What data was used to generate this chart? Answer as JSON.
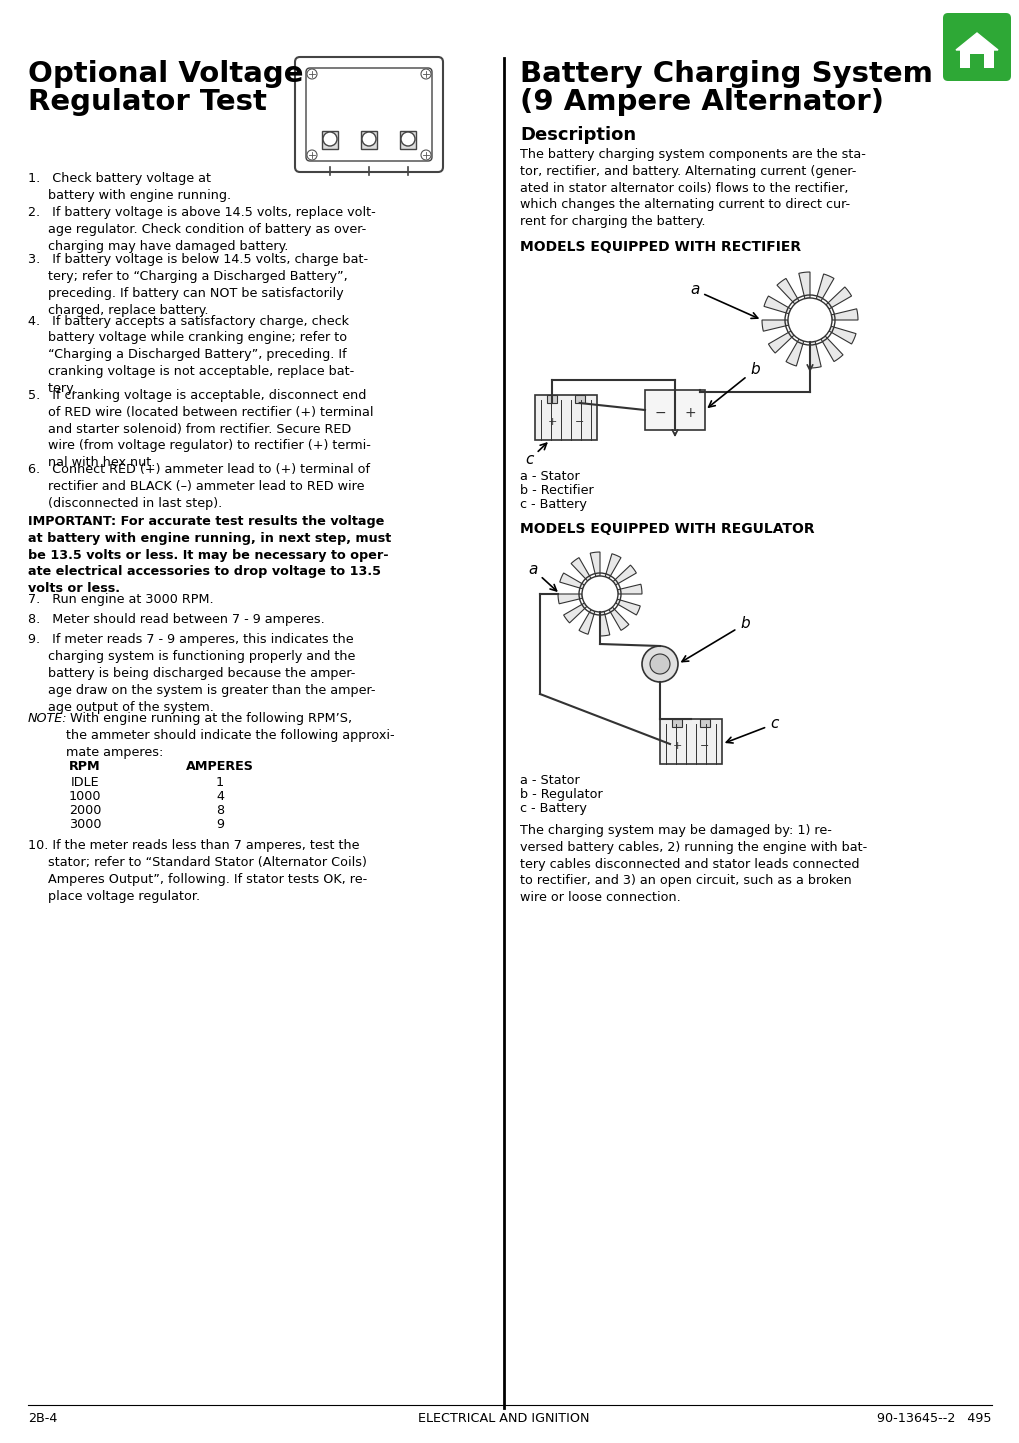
{
  "bg_color": "#ffffff",
  "left_title_line1": "Optional Voltage",
  "left_title_line2": "Regulator Test",
  "right_title_line1": "Battery Charging System",
  "right_title_line2": "(9 Ampere Alternator)",
  "right_subtitle": "Description",
  "description_text": "The battery charging system components are the sta-\ntor, rectifier, and battery. Alternating current (gener-\nated in stator alternator coils) flows to the rectifier,\nwhich changes the alternating current to direct cur-\nrent for charging the battery.",
  "models_rectifier_label": "MODELS EQUIPPED WITH RECTIFIER",
  "models_regulator_label": "MODELS EQUIPPED WITH REGULATOR",
  "rectifier_labels": [
    "a - Stator",
    "b - Rectifier",
    "c - Battery"
  ],
  "regulator_labels": [
    "a - Stator",
    "b - Regulator",
    "c - Battery"
  ],
  "step1": "1.   Check battery voltage at\n     battery with engine running.",
  "step2": "2.   If battery voltage is above 14.5 volts, replace volt-\n     age regulator. Check condition of battery as over-\n     charging may have damaged battery.",
  "step3": "3.   If battery voltage is below 14.5 volts, charge bat-\n     tery; refer to “Charging a Discharged Battery”,\n     preceding. If battery can NOT be satisfactorily\n     charged, replace battery.",
  "step4": "4.   If battery accepts a satisfactory charge, check\n     battery voltage while cranking engine; refer to\n     “Charging a Discharged Battery”, preceding. If\n     cranking voltage is not acceptable, replace bat-\n     tery.",
  "step5": "5.   If cranking voltage is acceptable, disconnect end\n     of RED wire (located between rectifier (+) terminal\n     and starter solenoid) from rectifier. Secure RED\n     wire (from voltage regulator) to rectifier (+) termi-\n     nal with hex nut.",
  "step6": "6.   Connect RED (+) ammeter lead to (+) terminal of\n     rectifier and BLACK (–) ammeter lead to RED wire\n     (disconnected in last step).",
  "important_text": "IMPORTANT: For accurate test results the voltage\nat battery with engine running, in next step, must\nbe 13.5 volts or less. It may be necessary to oper-\nate electrical accessories to drop voltage to 13.5\nvolts or less.",
  "step7": "7.   Run engine at 3000 RPM.",
  "step8": "8.   Meter should read between 7 - 9 amperes.",
  "step9": "9.   If meter reads 7 - 9 amperes, this indicates the\n     charging system is functioning properly and the\n     battery is being discharged because the amper-\n     age draw on the system is greater than the amper-\n     age output of the system.",
  "note_italic": "NOTE:",
  "note_rest": " With engine running at the following RPM’S,\nthe ammeter should indicate the following approxi-\nmate amperes:",
  "rpm_header": "RPM",
  "amperes_header": "AMPERES",
  "rpm_values": [
    "IDLE",
    "1000",
    "2000",
    "3000"
  ],
  "amperes_values": [
    "1",
    "4",
    "8",
    "9"
  ],
  "step10": "10. If the meter reads less than 7 amperes, test the\n     stator; refer to “Standard Stator (Alternator Coils)\n     Amperes Output”, following. If stator tests OK, re-\n     place voltage regulator.",
  "bottom_right_text": "The charging system may be damaged by: 1) re-\nversed battery cables, 2) running the engine with bat-\ntery cables disconnected and stator leads connected\nto rectifier, and 3) an open circuit, such as a broken\nwire or loose connection.",
  "footer_left": "2B-4",
  "footer_center": "ELECTRICAL AND IGNITION",
  "footer_right": "90-13645--2   495",
  "text_color": "#000000",
  "green_color": "#2ea836",
  "divider_color": "#000000"
}
